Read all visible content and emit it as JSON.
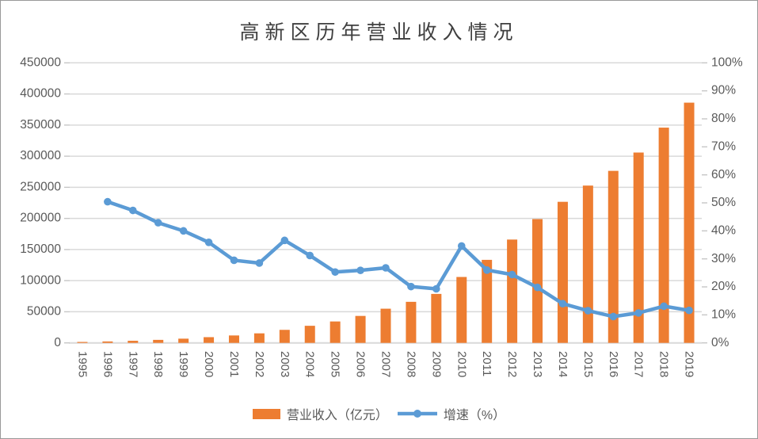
{
  "chart_data": {
    "type": "bar",
    "subtype": "combo-bar-line-dual-axis",
    "title": "高新区历年营业收入情况",
    "categories": [
      "1995",
      "1996",
      "1997",
      "1998",
      "1999",
      "2000",
      "2001",
      "2002",
      "2003",
      "2004",
      "2005",
      "2006",
      "2007",
      "2008",
      "2009",
      "2010",
      "2011",
      "2012",
      "2013",
      "2014",
      "2015",
      "2016",
      "2017",
      "2018",
      "2019"
    ],
    "series": [
      {
        "name": "营业收入（亿元）",
        "type": "bar",
        "axis": "left",
        "color": "#ED7D31",
        "values": [
          1529,
          2300,
          3388,
          4840,
          6775,
          9209,
          11928,
          15326,
          20939,
          27463,
          34416,
          43320,
          54926,
          65986,
          78707,
          105917,
          133434,
          166031,
          198902,
          226690,
          252757,
          276419,
          305870,
          345900,
          386000
        ]
      },
      {
        "name": "增速（%）",
        "type": "line",
        "axis": "right",
        "color": "#5B9BD5",
        "values": [
          null,
          50.4,
          47.3,
          42.9,
          40.0,
          35.9,
          29.5,
          28.5,
          36.6,
          31.2,
          25.3,
          25.9,
          26.8,
          20.1,
          19.3,
          34.6,
          26.0,
          24.4,
          19.8,
          14.0,
          11.5,
          9.4,
          10.7,
          13.1,
          11.6
        ]
      }
    ],
    "left_axis": {
      "min": 0,
      "max": 450000,
      "step": 50000,
      "tick_labels": [
        "450000",
        "400000",
        "350000",
        "300000",
        "250000",
        "200000",
        "150000",
        "100000",
        "50000",
        "0"
      ]
    },
    "right_axis": {
      "min": 0,
      "max": 100,
      "step": 10,
      "tick_labels": [
        "100%",
        "90%",
        "80%",
        "70%",
        "60%",
        "50%",
        "40%",
        "30%",
        "20%",
        "10%",
        "0%"
      ]
    },
    "grid": true,
    "legend_position": "bottom",
    "x_labels_rotation_deg": 90,
    "colors": {
      "grid": "#D9D9D9",
      "tick": "#C6C6C6",
      "axis_text": "#595959",
      "title_text": "#3F3F3F",
      "background": "#FFFFFF"
    }
  }
}
